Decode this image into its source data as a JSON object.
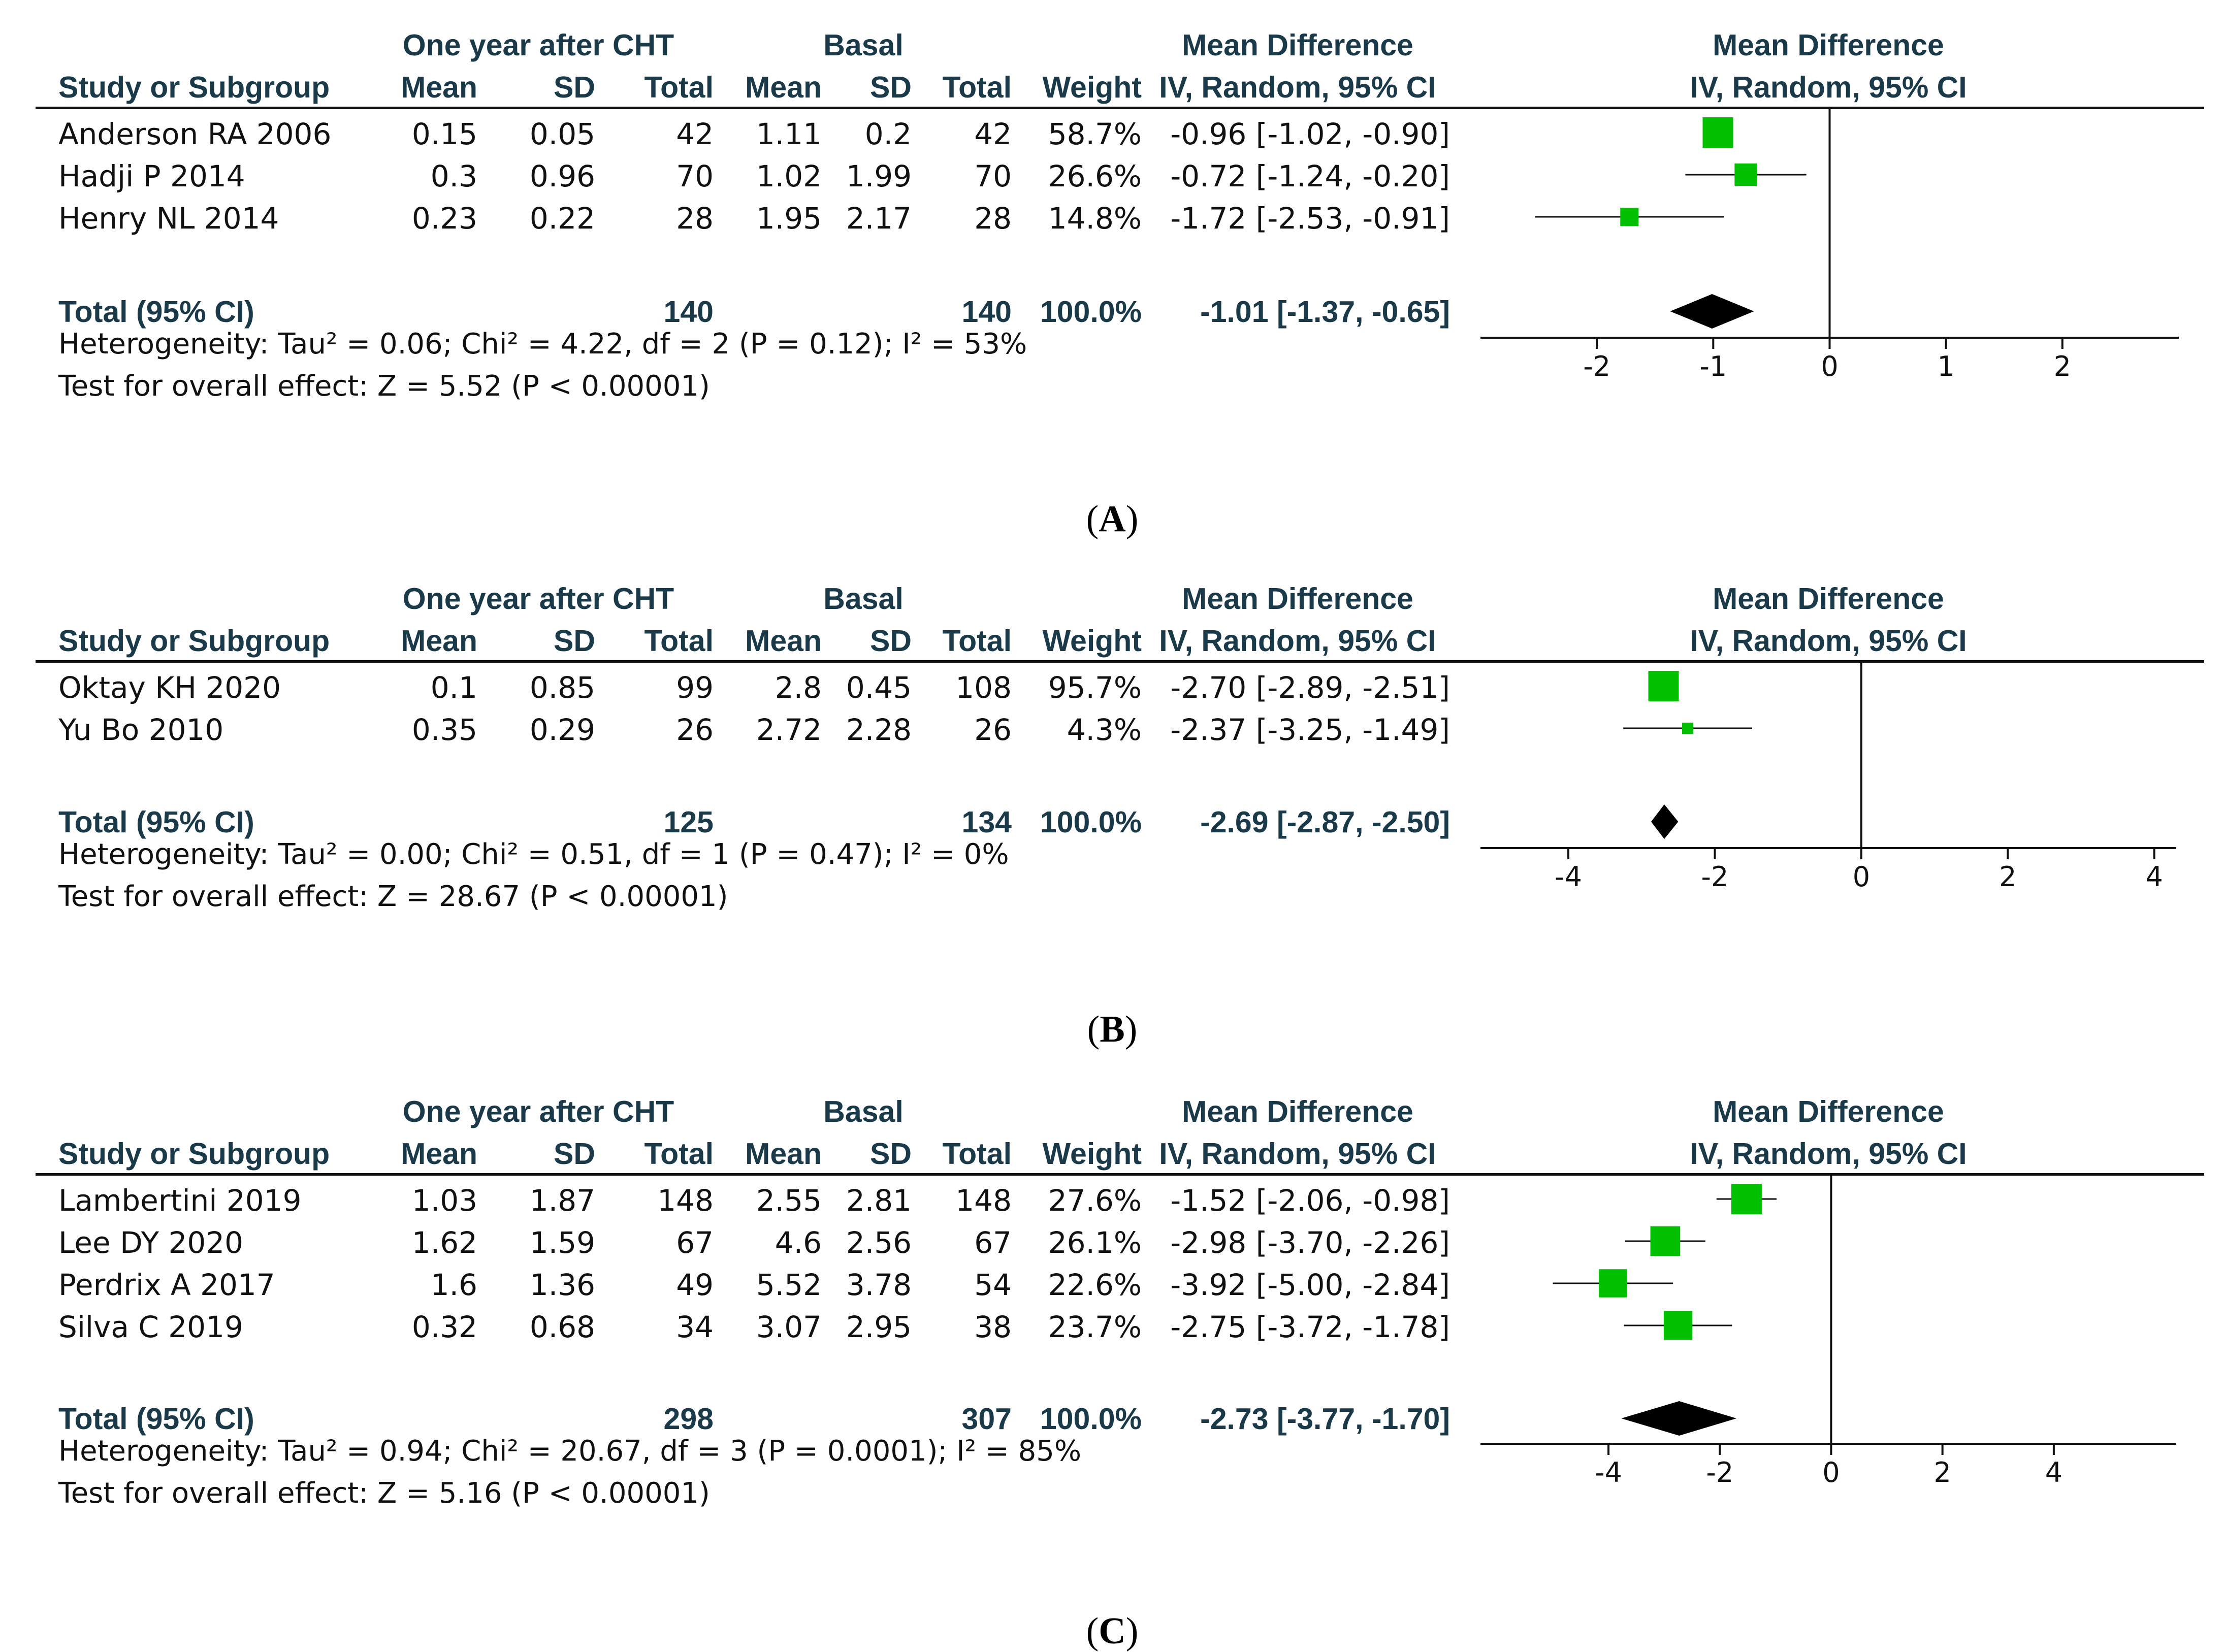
{
  "colors": {
    "box": "#00c000",
    "diamond": "#000000",
    "text": "#111111",
    "header": "#1a3a4a"
  },
  "headers": {
    "group1": "One year after CHT",
    "group2": "Basal",
    "md_top": "Mean Difference",
    "md_bottom": "IV, Random, 95% CI",
    "study": "Study or Subgroup",
    "mean": "Mean",
    "sd": "SD",
    "total": "Total",
    "weight": "Weight",
    "plot_top": "Mean Difference",
    "plot_bottom": "IV, Random, 95% CI"
  },
  "chart_data": [
    {
      "type": "forest",
      "caption_letter": "A",
      "xlim": [
        -3,
        3
      ],
      "xticks": [
        -2,
        -1,
        0,
        1,
        2
      ],
      "rows": [
        {
          "study": "Anderson RA 2006",
          "mean1": "0.15",
          "sd1": "0.05",
          "total1": "42",
          "mean2": "1.11",
          "sd2": "0.2",
          "total2": "42",
          "weight": "58.7%",
          "ci_text": "-0.96 [-1.02, -0.90]",
          "md": -0.96,
          "lo": -1.02,
          "hi": -0.9,
          "w": 58.7
        },
        {
          "study": "Hadji P 2014",
          "mean1": "0.3",
          "sd1": "0.96",
          "total1": "70",
          "mean2": "1.02",
          "sd2": "1.99",
          "total2": "70",
          "weight": "26.6%",
          "ci_text": "-0.72 [-1.24, -0.20]",
          "md": -0.72,
          "lo": -1.24,
          "hi": -0.2,
          "w": 26.6
        },
        {
          "study": "Henry NL 2014",
          "mean1": "0.23",
          "sd1": "0.22",
          "total1": "28",
          "mean2": "1.95",
          "sd2": "2.17",
          "total2": "28",
          "weight": "14.8%",
          "ci_text": "-1.72 [-2.53, -0.91]",
          "md": -1.72,
          "lo": -2.53,
          "hi": -0.91,
          "w": 14.8
        }
      ],
      "total": {
        "label": "Total (95% CI)",
        "total1": "140",
        "total2": "140",
        "weight": "100.0%",
        "ci_text": "-1.01 [-1.37, -0.65]",
        "md": -1.01,
        "lo": -1.37,
        "hi": -0.65
      },
      "heterogeneity": "Heterogeneity: Tau² = 0.06; Chi² = 4.22, df = 2 (P = 0.12); I² = 53%",
      "overall": "Test for overall effect: Z = 5.52 (P < 0.00001)"
    },
    {
      "type": "forest",
      "caption_letter": "B",
      "xlim": [
        -5.2,
        4.3
      ],
      "xticks": [
        -4,
        -2,
        0,
        2,
        4
      ],
      "rows": [
        {
          "study": "Oktay KH 2020",
          "mean1": "0.1",
          "sd1": "0.85",
          "total1": "99",
          "mean2": "2.8",
          "sd2": "0.45",
          "total2": "108",
          "weight": "95.7%",
          "ci_text": "-2.70 [-2.89, -2.51]",
          "md": -2.7,
          "lo": -2.89,
          "hi": -2.51,
          "w": 95.7
        },
        {
          "study": "Yu Bo 2010",
          "mean1": "0.35",
          "sd1": "0.29",
          "total1": "26",
          "mean2": "2.72",
          "sd2": "2.28",
          "total2": "26",
          "weight": "4.3%",
          "ci_text": "-2.37 [-3.25, -1.49]",
          "md": -2.37,
          "lo": -3.25,
          "hi": -1.49,
          "w": 4.3
        }
      ],
      "total": {
        "label": "Total (95% CI)",
        "total1": "125",
        "total2": "134",
        "weight": "100.0%",
        "ci_text": "-2.69 [-2.87, -2.50]",
        "md": -2.69,
        "lo": -2.87,
        "hi": -2.5
      },
      "heterogeneity": "Heterogeneity: Tau² = 0.00; Chi² = 0.51, df = 1 (P = 0.47); I² = 0%",
      "overall": "Test for overall effect: Z = 28.67 (P < 0.00001)"
    },
    {
      "type": "forest",
      "caption_letter": "C",
      "xlim": [
        -6.3,
        6.2
      ],
      "xticks": [
        -4,
        -2,
        0,
        2,
        4
      ],
      "rows": [
        {
          "study": "Lambertini 2019",
          "mean1": "1.03",
          "sd1": "1.87",
          "total1": "148",
          "mean2": "2.55",
          "sd2": "2.81",
          "total2": "148",
          "weight": "27.6%",
          "ci_text": "-1.52 [-2.06, -0.98]",
          "md": -1.52,
          "lo": -2.06,
          "hi": -0.98,
          "w": 27.6
        },
        {
          "study": "Lee DY 2020",
          "mean1": "1.62",
          "sd1": "1.59",
          "total1": "67",
          "mean2": "4.6",
          "sd2": "2.56",
          "total2": "67",
          "weight": "26.1%",
          "ci_text": "-2.98 [-3.70, -2.26]",
          "md": -2.98,
          "lo": -3.7,
          "hi": -2.26,
          "w": 26.1
        },
        {
          "study": "Perdrix A 2017",
          "mean1": "1.6",
          "sd1": "1.36",
          "total1": "49",
          "mean2": "5.52",
          "sd2": "3.78",
          "total2": "54",
          "weight": "22.6%",
          "ci_text": "-3.92 [-5.00, -2.84]",
          "md": -3.92,
          "lo": -5.0,
          "hi": -2.84,
          "w": 22.6
        },
        {
          "study": "Silva C 2019",
          "mean1": "0.32",
          "sd1": "0.68",
          "total1": "34",
          "mean2": "3.07",
          "sd2": "2.95",
          "total2": "38",
          "weight": "23.7%",
          "ci_text": "-2.75 [-3.72, -1.78]",
          "md": -2.75,
          "lo": -3.72,
          "hi": -1.78,
          "w": 23.7
        }
      ],
      "total": {
        "label": "Total (95% CI)",
        "total1": "298",
        "total2": "307",
        "weight": "100.0%",
        "ci_text": "-2.73 [-3.77, -1.70]",
        "md": -2.73,
        "lo": -3.77,
        "hi": -1.7
      },
      "heterogeneity": "Heterogeneity: Tau² = 0.94; Chi² = 20.67, df = 3 (P = 0.0001); I² = 85%",
      "overall": "Test for overall effect: Z = 5.16 (P < 0.00001)"
    }
  ]
}
